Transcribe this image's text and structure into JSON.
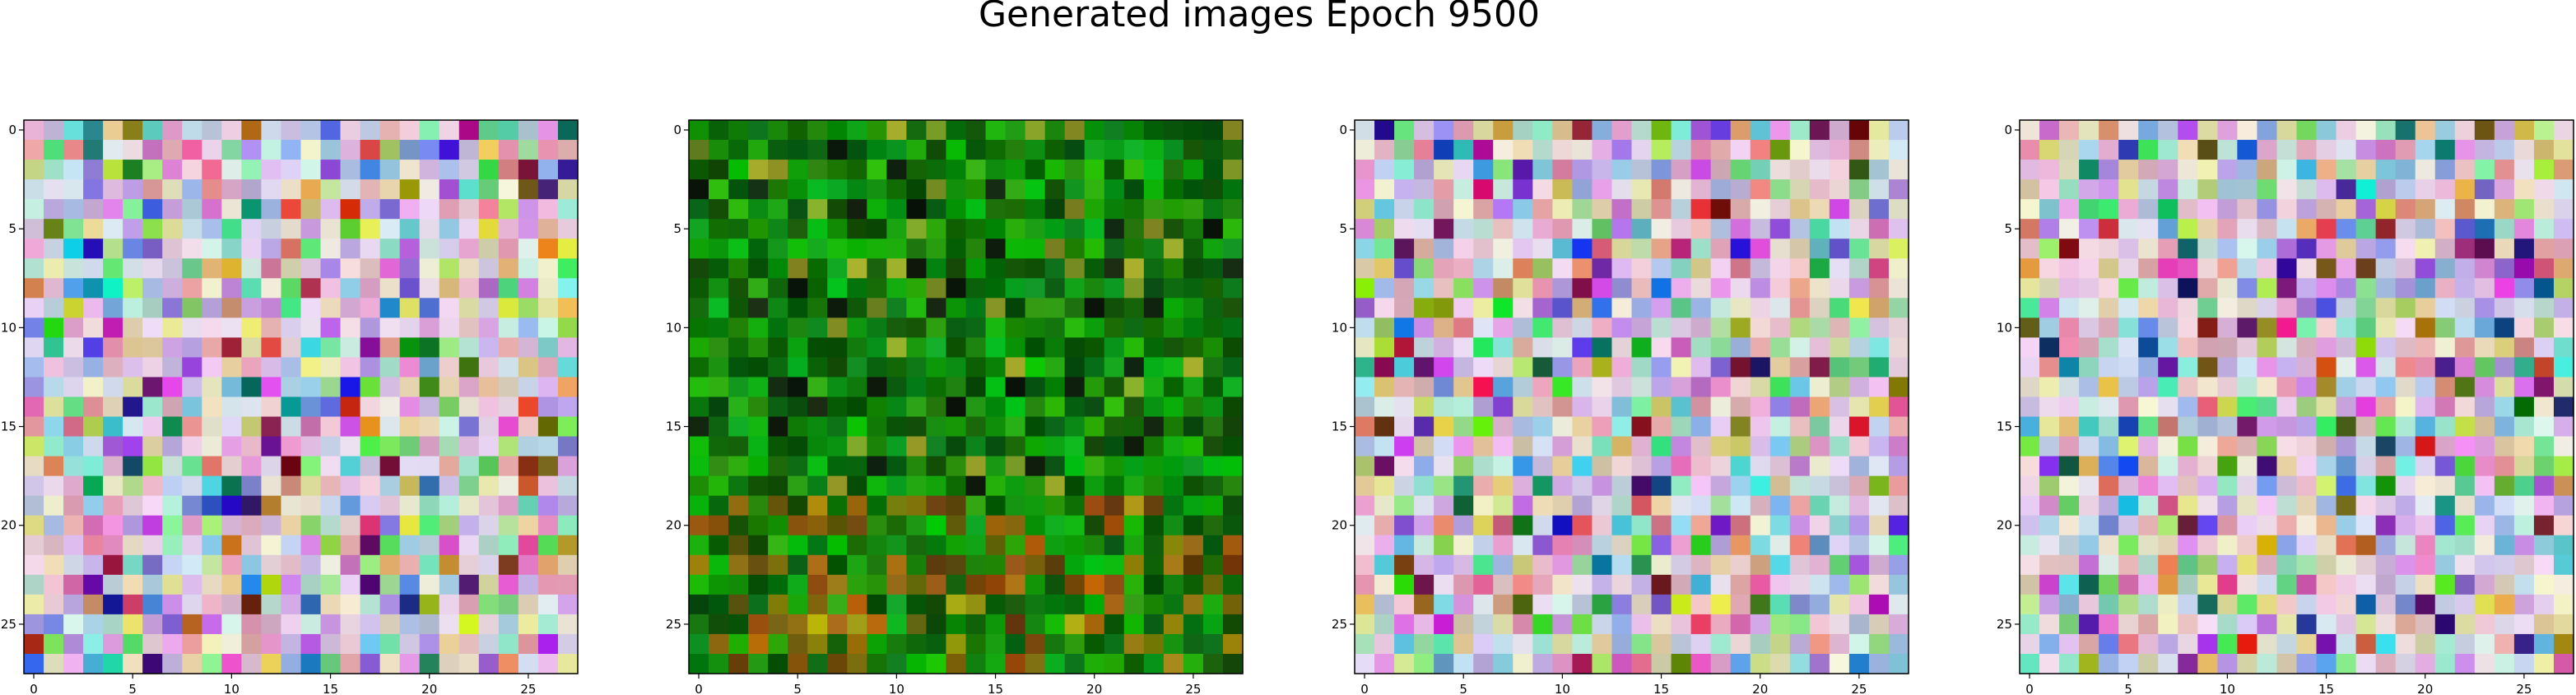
{
  "figure": {
    "title": "Generated images Epoch 9500"
  },
  "chart_data": [
    {
      "type": "heatmap",
      "panel": 1,
      "palette": "pastel-noise",
      "grid_size": [
        28,
        28
      ],
      "xlim": [
        -0.5,
        27.5
      ],
      "ylim": [
        27.5,
        -0.5
      ],
      "xticks": [
        0,
        5,
        10,
        15,
        20,
        25
      ],
      "yticks": [
        0,
        5,
        10,
        15,
        20,
        25
      ],
      "grid": false
    },
    {
      "type": "heatmap",
      "panel": 2,
      "palette": "green-foliage",
      "grid_size": [
        28,
        28
      ],
      "xlim": [
        -0.5,
        27.5
      ],
      "ylim": [
        27.5,
        -0.5
      ],
      "xticks": [
        0,
        5,
        10,
        15,
        20,
        25
      ],
      "yticks": [
        0,
        5,
        10,
        15,
        20,
        25
      ],
      "grid": false
    },
    {
      "type": "heatmap",
      "panel": 3,
      "palette": "pastel-noise",
      "grid_size": [
        28,
        28
      ],
      "xlim": [
        -0.5,
        27.5
      ],
      "ylim": [
        27.5,
        -0.5
      ],
      "xticks": [
        0,
        5,
        10,
        15,
        20,
        25
      ],
      "yticks": [
        0,
        5,
        10,
        15,
        20,
        25
      ],
      "grid": false
    },
    {
      "type": "heatmap",
      "panel": 4,
      "palette": "pastel-noise",
      "grid_size": [
        28,
        28
      ],
      "xlim": [
        -0.5,
        27.5
      ],
      "ylim": [
        27.5,
        -0.5
      ],
      "xticks": [
        0,
        5,
        10,
        15,
        20,
        25
      ],
      "yticks": [
        0,
        5,
        10,
        15,
        20,
        25
      ],
      "grid": false
    }
  ]
}
